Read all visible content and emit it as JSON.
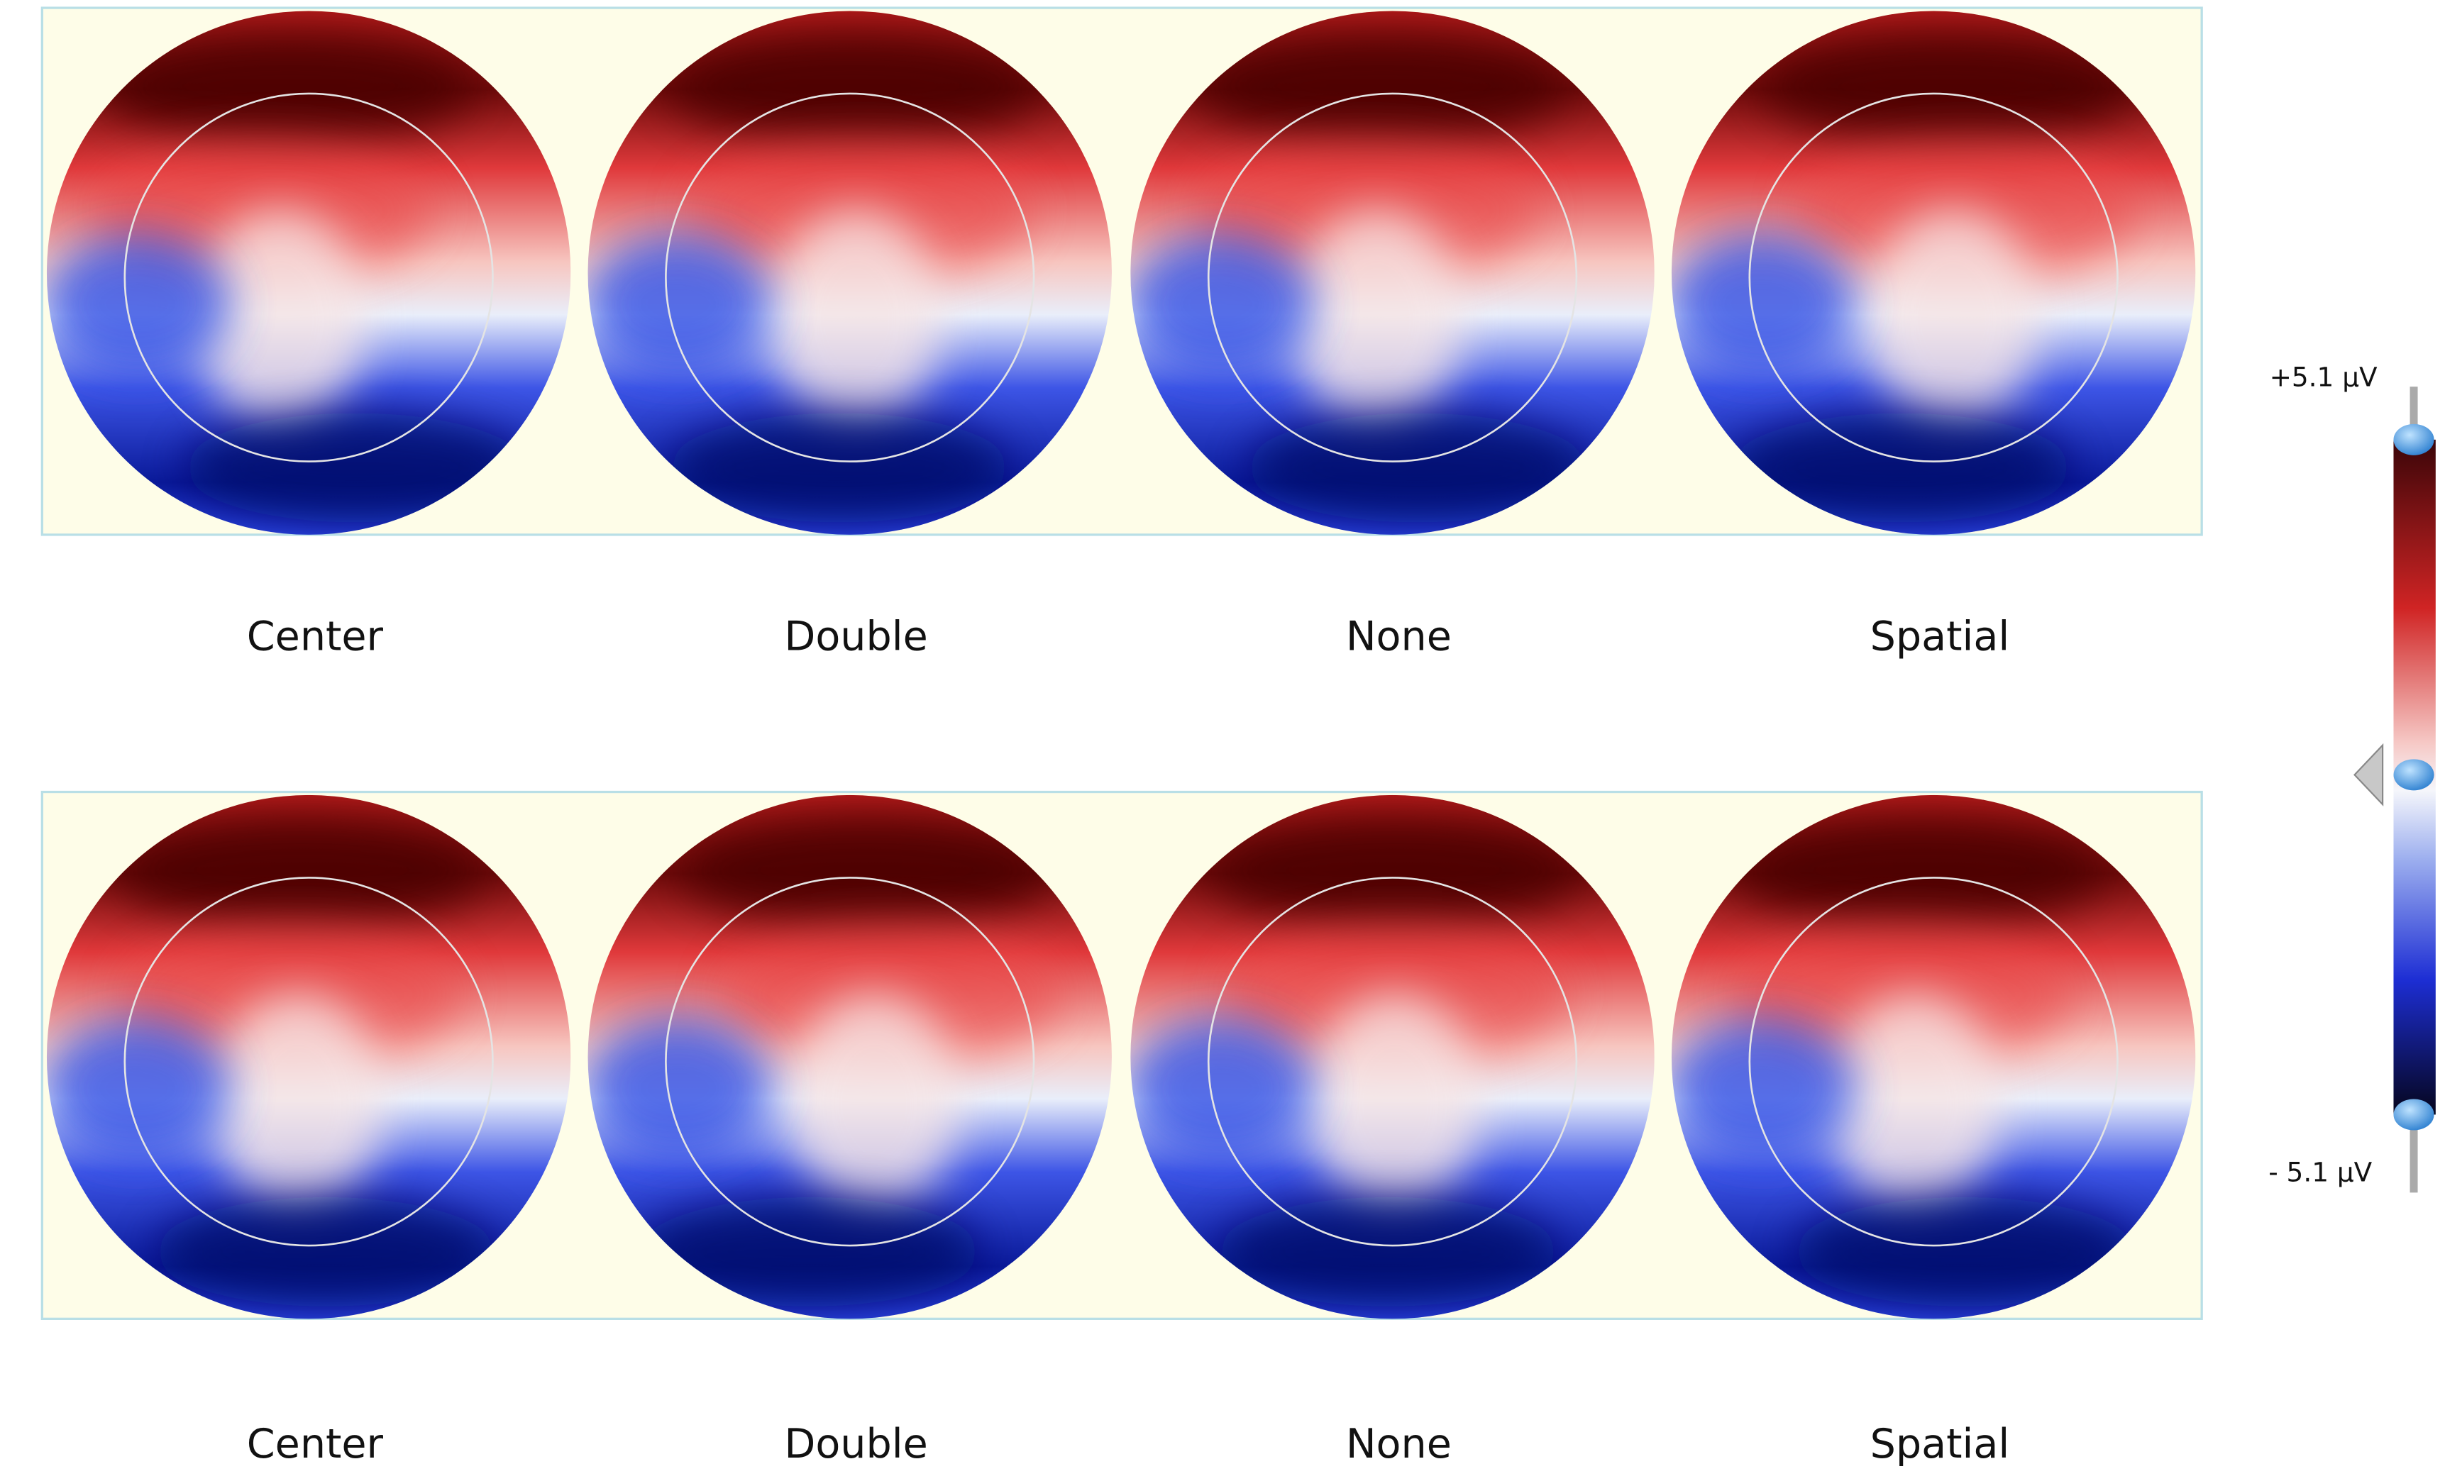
{
  "rows": [
    {
      "panels": [
        {
          "label": "Center"
        },
        {
          "label": "Double"
        },
        {
          "label": "None"
        },
        {
          "label": "Spatial"
        }
      ]
    },
    {
      "panels": [
        {
          "label": "Center"
        },
        {
          "label": "Double"
        },
        {
          "label": "None"
        },
        {
          "label": "Spatial"
        }
      ]
    }
  ],
  "colorbar": {
    "max_label": "+5.1 µV",
    "min_label": "- 5.1 µV"
  }
}
